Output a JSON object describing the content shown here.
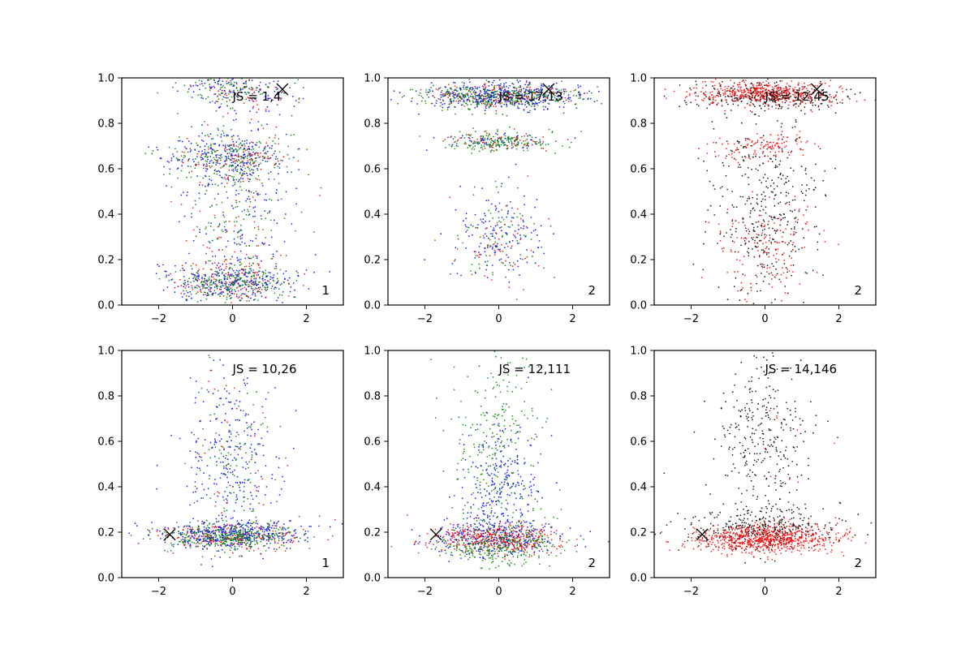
{
  "chart_data": [
    {
      "type": "scatter",
      "annotation": "JS = 1,4",
      "corner_label": "1",
      "xlim": [
        -3,
        3
      ],
      "ylim": [
        0,
        1
      ],
      "xticks": [
        -2,
        0,
        2
      ],
      "yticks": [
        0.0,
        0.2,
        0.4,
        0.6,
        0.8,
        1.0
      ],
      "marker": {
        "x": 1.35,
        "y": 0.95
      },
      "series": [
        {
          "color": "#0000ff",
          "bands": [
            {
              "center": 0.1,
              "spread": 0.04,
              "x_spread": 0.85,
              "count": 260
            },
            {
              "center": 0.65,
              "spread": 0.05,
              "x_spread": 0.8,
              "count": 200
            },
            {
              "center": 0.45,
              "spread": 0.25,
              "x_spread": 0.8,
              "count": 220
            },
            {
              "center": 0.95,
              "spread": 0.04,
              "x_spread": 0.8,
              "count": 120
            }
          ]
        },
        {
          "color": "#ff0000",
          "bands": [
            {
              "center": 0.1,
              "spread": 0.04,
              "x_spread": 0.8,
              "count": 110
            },
            {
              "center": 0.65,
              "spread": 0.05,
              "x_spread": 0.75,
              "count": 80
            },
            {
              "center": 0.4,
              "spread": 0.25,
              "x_spread": 0.75,
              "count": 90
            },
            {
              "center": 0.95,
              "spread": 0.04,
              "x_spread": 0.75,
              "count": 50
            }
          ]
        },
        {
          "color": "#008000",
          "bands": [
            {
              "center": 0.1,
              "spread": 0.04,
              "x_spread": 0.8,
              "count": 220
            },
            {
              "center": 0.65,
              "spread": 0.05,
              "x_spread": 0.75,
              "count": 180
            },
            {
              "center": 0.45,
              "spread": 0.25,
              "x_spread": 0.75,
              "count": 180
            },
            {
              "center": 0.95,
              "spread": 0.04,
              "x_spread": 0.75,
              "count": 100
            }
          ]
        }
      ]
    },
    {
      "type": "scatter",
      "annotation": "JS = 17,13",
      "corner_label": "2",
      "xlim": [
        -3,
        3
      ],
      "ylim": [
        0,
        1
      ],
      "xticks": [
        -2,
        0,
        2
      ],
      "yticks": [
        0.0,
        0.2,
        0.4,
        0.6,
        0.8,
        1.0
      ],
      "marker": {
        "x": 1.35,
        "y": 0.95
      },
      "series": [
        {
          "color": "#0000ff",
          "bands": [
            {
              "center": 0.92,
              "spread": 0.03,
              "x_spread": 1.1,
              "count": 420
            },
            {
              "center": 0.72,
              "spread": 0.02,
              "x_spread": 0.7,
              "count": 60
            },
            {
              "center": 0.3,
              "spread": 0.1,
              "x_spread": 0.65,
              "count": 150
            }
          ]
        },
        {
          "color": "#ff0000",
          "bands": [
            {
              "center": 0.92,
              "spread": 0.03,
              "x_spread": 1.0,
              "count": 150
            },
            {
              "center": 0.72,
              "spread": 0.02,
              "x_spread": 0.7,
              "count": 60
            },
            {
              "center": 0.28,
              "spread": 0.1,
              "x_spread": 0.6,
              "count": 50
            }
          ]
        },
        {
          "color": "#008000",
          "bands": [
            {
              "center": 0.92,
              "spread": 0.03,
              "x_spread": 1.0,
              "count": 350
            },
            {
              "center": 0.72,
              "spread": 0.02,
              "x_spread": 0.75,
              "count": 180
            },
            {
              "center": 0.3,
              "spread": 0.1,
              "x_spread": 0.6,
              "count": 80
            }
          ]
        }
      ]
    },
    {
      "type": "scatter",
      "annotation": "JS = 12,45",
      "corner_label": "2",
      "xlim": [
        -3,
        3
      ],
      "ylim": [
        0,
        1
      ],
      "xticks": [
        -2,
        0,
        2
      ],
      "yticks": [
        0.0,
        0.2,
        0.4,
        0.6,
        0.8,
        1.0
      ],
      "marker": {
        "x": 1.4,
        "y": 0.95
      },
      "series": [
        {
          "color": "#000000",
          "bands": [
            {
              "center": 0.92,
              "spread": 0.03,
              "x_spread": 1.1,
              "count": 280
            },
            {
              "center": 0.45,
              "spread": 0.22,
              "x_spread": 0.7,
              "count": 420
            }
          ]
        },
        {
          "color": "#ff0000",
          "bands": [
            {
              "center": 0.93,
              "spread": 0.025,
              "x_spread": 0.95,
              "count": 480
            },
            {
              "center": 0.7,
              "spread": 0.03,
              "x_spread": 0.7,
              "count": 120
            },
            {
              "center": 0.25,
              "spread": 0.1,
              "x_spread": 0.7,
              "count": 140
            }
          ]
        }
      ]
    },
    {
      "type": "scatter",
      "annotation": "JS = 10,26",
      "corner_label": "1",
      "xlim": [
        -3,
        3
      ],
      "ylim": [
        0,
        1
      ],
      "xticks": [
        -2,
        0,
        2
      ],
      "yticks": [
        0.0,
        0.2,
        0.4,
        0.6,
        0.8,
        1.0
      ],
      "marker": {
        "x": -1.7,
        "y": 0.19
      },
      "series": [
        {
          "color": "#0000ff",
          "bands": [
            {
              "center": 0.19,
              "spread": 0.03,
              "x_spread": 1.0,
              "count": 420
            },
            {
              "center": 0.5,
              "spread": 0.2,
              "x_spread": 0.65,
              "count": 260
            }
          ]
        },
        {
          "color": "#ff0000",
          "bands": [
            {
              "center": 0.18,
              "spread": 0.03,
              "x_spread": 0.95,
              "count": 160
            },
            {
              "center": 0.5,
              "spread": 0.2,
              "x_spread": 0.6,
              "count": 30
            }
          ]
        },
        {
          "color": "#008000",
          "bands": [
            {
              "center": 0.18,
              "spread": 0.03,
              "x_spread": 0.95,
              "count": 360
            },
            {
              "center": 0.5,
              "spread": 0.2,
              "x_spread": 0.6,
              "count": 120
            }
          ]
        }
      ]
    },
    {
      "type": "scatter",
      "annotation": "JS = 12,111",
      "corner_label": "2",
      "xlim": [
        -3,
        3
      ],
      "ylim": [
        0,
        1
      ],
      "xticks": [
        -2,
        0,
        2
      ],
      "yticks": [
        0.0,
        0.2,
        0.4,
        0.6,
        0.8,
        1.0
      ],
      "marker": {
        "x": -1.7,
        "y": 0.19
      },
      "series": [
        {
          "color": "#0000ff",
          "bands": [
            {
              "center": 0.18,
              "spread": 0.04,
              "x_spread": 0.9,
              "count": 300
            },
            {
              "center": 0.4,
              "spread": 0.15,
              "x_spread": 0.55,
              "count": 260
            }
          ]
        },
        {
          "color": "#ff0000",
          "bands": [
            {
              "center": 0.17,
              "spread": 0.03,
              "x_spread": 0.9,
              "count": 380
            }
          ]
        },
        {
          "color": "#008000",
          "bands": [
            {
              "center": 0.14,
              "spread": 0.04,
              "x_spread": 0.9,
              "count": 300
            },
            {
              "center": 0.55,
              "spread": 0.25,
              "x_spread": 0.6,
              "count": 300
            }
          ]
        }
      ]
    },
    {
      "type": "scatter",
      "annotation": "JS = 14,146",
      "corner_label": "2",
      "xlim": [
        -3,
        3
      ],
      "ylim": [
        0,
        1
      ],
      "xticks": [
        -2,
        0,
        2
      ],
      "yticks": [
        0.0,
        0.2,
        0.4,
        0.6,
        0.8,
        1.0
      ],
      "marker": {
        "x": -1.7,
        "y": 0.19
      },
      "series": [
        {
          "color": "#000000",
          "bands": [
            {
              "center": 0.22,
              "spread": 0.04,
              "x_spread": 1.05,
              "count": 330
            },
            {
              "center": 0.6,
              "spread": 0.2,
              "x_spread": 0.65,
              "count": 340
            }
          ]
        },
        {
          "color": "#ff0000",
          "bands": [
            {
              "center": 0.17,
              "spread": 0.03,
              "x_spread": 0.95,
              "count": 750
            },
            {
              "center": 0.6,
              "spread": 0.2,
              "x_spread": 0.6,
              "count": 10
            }
          ]
        }
      ]
    }
  ]
}
